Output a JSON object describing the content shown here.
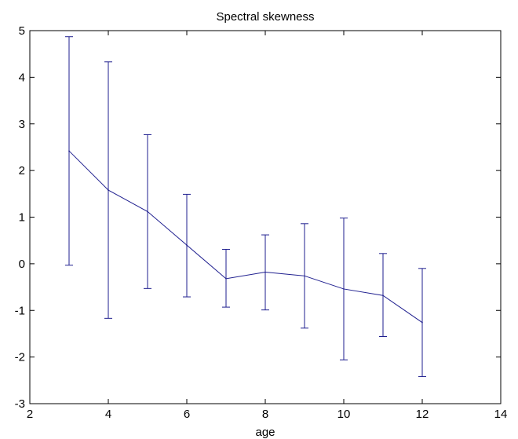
{
  "chart_data": {
    "type": "line",
    "title": "Spectral skewness",
    "xlabel": "age",
    "ylabel": "",
    "xlim": [
      2,
      14
    ],
    "ylim": [
      -3,
      5
    ],
    "xticks": [
      2,
      4,
      6,
      8,
      10,
      12,
      14
    ],
    "yticks": [
      -3,
      -2,
      -1,
      0,
      1,
      2,
      3,
      4,
      5
    ],
    "grid": false,
    "series": [
      {
        "x": [
          3,
          4,
          5,
          6,
          7,
          8,
          9,
          10,
          11,
          12
        ],
        "y": [
          2.42,
          1.58,
          1.12,
          0.4,
          -0.32,
          -0.18,
          -0.26,
          -0.54,
          -0.68,
          -1.26
        ],
        "error_lower": [
          -0.03,
          -1.17,
          -0.53,
          -0.71,
          -0.93,
          -0.99,
          -1.38,
          -2.06,
          -1.56,
          -2.42
        ],
        "error_upper": [
          4.87,
          4.33,
          2.77,
          1.49,
          0.31,
          0.62,
          0.86,
          0.98,
          0.22,
          -0.1
        ]
      }
    ],
    "colors": {
      "line": "#1f1f8f",
      "axes": "#000000",
      "background": "#ffffff"
    }
  }
}
